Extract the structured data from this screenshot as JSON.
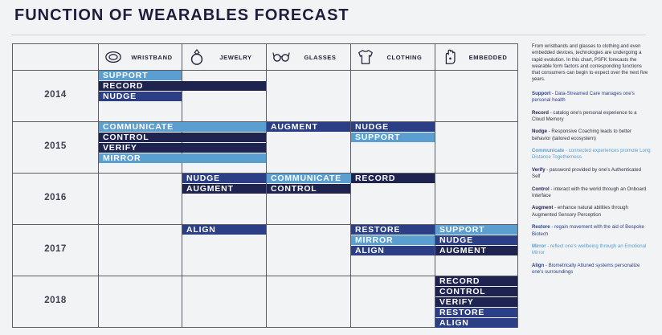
{
  "title": "FUNCTION OF WEARABLES FORECAST",
  "colors": {
    "dark": "#1e2350",
    "mid": "#2c3f86",
    "light": "#5a9fd0"
  },
  "chart_data": {
    "type": "table",
    "columns": [
      {
        "label": "WRISTBAND",
        "icon": "wristband-icon"
      },
      {
        "label": "JEWELRY",
        "icon": "ring-icon"
      },
      {
        "label": "GLASSES",
        "icon": "glasses-icon"
      },
      {
        "label": "CLOTHING",
        "icon": "shirt-icon"
      },
      {
        "label": "EMBEDDED",
        "icon": "hand-icon"
      }
    ],
    "years": [
      "2014",
      "2015",
      "2016",
      "2017",
      "2018"
    ],
    "bars": [
      {
        "year": "2014",
        "label": "SUPPORT",
        "start_col": 0,
        "end_col": 0,
        "color": "light"
      },
      {
        "year": "2014",
        "label": "RECORD",
        "start_col": 0,
        "end_col": 1,
        "color": "dark"
      },
      {
        "year": "2014",
        "label": "NUDGE",
        "start_col": 0,
        "end_col": 0,
        "color": "mid"
      },
      {
        "year": "2015",
        "label": "COMMUNICATE",
        "start_col": 0,
        "end_col": 1,
        "color": "light"
      },
      {
        "year": "2015",
        "label": "CONTROL",
        "start_col": 0,
        "end_col": 1,
        "color": "dark"
      },
      {
        "year": "2015",
        "label": "VERIFY",
        "start_col": 0,
        "end_col": 1,
        "color": "dark"
      },
      {
        "year": "2015",
        "label": "MIRROR",
        "start_col": 0,
        "end_col": 1,
        "color": "light"
      },
      {
        "year": "2015",
        "label": "AUGMENT",
        "start_col": 2,
        "end_col": 2,
        "color": "mid"
      },
      {
        "year": "2015",
        "label": "NUDGE",
        "start_col": 3,
        "end_col": 3,
        "color": "mid"
      },
      {
        "year": "2015",
        "label": "SUPPORT",
        "start_col": 3,
        "end_col": 3,
        "color": "light"
      },
      {
        "year": "2016",
        "label": "NUDGE",
        "start_col": 1,
        "end_col": 1,
        "color": "mid"
      },
      {
        "year": "2016",
        "label": "AUGMENT",
        "start_col": 1,
        "end_col": 1,
        "color": "dark"
      },
      {
        "year": "2016",
        "label": "COMMUNICATE",
        "start_col": 2,
        "end_col": 3,
        "color": "light"
      },
      {
        "year": "2016",
        "label": "CONTROL",
        "start_col": 2,
        "end_col": 2,
        "color": "dark"
      },
      {
        "year": "2016",
        "label": "RECORD",
        "start_col": 3,
        "end_col": 3,
        "color": "dark"
      },
      {
        "year": "2017",
        "label": "ALIGN",
        "start_col": 1,
        "end_col": 1,
        "color": "mid"
      },
      {
        "year": "2017",
        "label": "RESTORE",
        "start_col": 3,
        "end_col": 3,
        "color": "mid"
      },
      {
        "year": "2017",
        "label": "MIRROR",
        "start_col": 3,
        "end_col": 3,
        "color": "light"
      },
      {
        "year": "2017",
        "label": "ALIGN",
        "start_col": 3,
        "end_col": 3,
        "color": "mid"
      },
      {
        "year": "2017",
        "label": "SUPPORT",
        "start_col": 4,
        "end_col": 4,
        "color": "light"
      },
      {
        "year": "2017",
        "label": "NUDGE",
        "start_col": 4,
        "end_col": 4,
        "color": "mid"
      },
      {
        "year": "2017",
        "label": "AUGMENT",
        "start_col": 4,
        "end_col": 4,
        "color": "dark"
      },
      {
        "year": "2018",
        "label": "RECORD",
        "start_col": 4,
        "end_col": 4,
        "color": "dark"
      },
      {
        "year": "2018",
        "label": "CONTROL",
        "start_col": 4,
        "end_col": 4,
        "color": "dark"
      },
      {
        "year": "2018",
        "label": "VERIFY",
        "start_col": 4,
        "end_col": 4,
        "color": "dark"
      },
      {
        "year": "2018",
        "label": "RESTORE",
        "start_col": 4,
        "end_col": 4,
        "color": "mid"
      },
      {
        "year": "2018",
        "label": "ALIGN",
        "start_col": 4,
        "end_col": 4,
        "color": "mid"
      }
    ]
  },
  "sidebar": {
    "intro": "From wristbands and glasses to clothing and even embedded devices, technologies are undergoing a rapid evolution. In this chart, PSFK forecasts the wearable form factors and corresponding functions that consumers can begin to expect over the next five years.",
    "items": [
      {
        "term": "Support",
        "desc": " - Data-Streamed Care manages one's personal health",
        "color": "mid"
      },
      {
        "term": "Record",
        "desc": " - catalog one's personal experience to a Cloud Memory",
        "color": "dark"
      },
      {
        "term": "Nudge",
        "desc": " - Responsive Coaching leads to better behavior (tailored ecosystem)",
        "color": "dark"
      },
      {
        "term": "Communicate",
        "desc": " - connected experiences promote Long Distance Togetherness",
        "color": "light"
      },
      {
        "term": "Verify",
        "desc": " - password provided by one's Authenticated Self",
        "color": "dark"
      },
      {
        "term": "Control",
        "desc": " - interact with the world through an Onboard Interface",
        "color": "dark"
      },
      {
        "term": "Augment",
        "desc": " - enhance natural abilities through Augmented Sensory Perception",
        "color": "dark"
      },
      {
        "term": "Restore",
        "desc": " - regain movement with the aid of Bespoke Biotech",
        "color": "mid"
      },
      {
        "term": "Mirror",
        "desc": " - reflect one's wellbeing through an Emotional Mirror",
        "color": "light"
      },
      {
        "term": "Align",
        "desc": " - Biometrically Attuned systems personalize one's surroundings",
        "color": "mid"
      }
    ]
  }
}
